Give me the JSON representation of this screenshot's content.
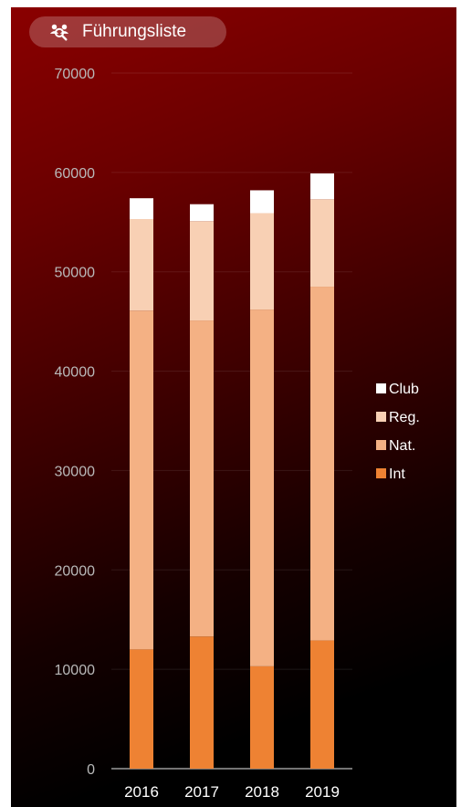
{
  "header": {
    "title": "Führungsliste",
    "icon": "users-search-icon"
  },
  "chart_data": {
    "type": "bar",
    "stacked": true,
    "categories": [
      "2016",
      "2017",
      "2018",
      "2019"
    ],
    "ylim": [
      0,
      70000
    ],
    "yticks": [
      0,
      10000,
      20000,
      30000,
      40000,
      50000,
      60000,
      70000
    ],
    "grid": true,
    "legend_position": "right",
    "series": [
      {
        "name": "Int",
        "color": "#ee8233",
        "values": [
          12000,
          13300,
          10300,
          12900
        ]
      },
      {
        "name": "Nat.",
        "color": "#f4b184",
        "values": [
          34100,
          31800,
          35900,
          35600
        ]
      },
      {
        "name": "Reg.",
        "color": "#f8d0b4",
        "values": [
          9200,
          10000,
          9700,
          8800
        ]
      },
      {
        "name": "Club",
        "color": "#ffffff",
        "values": [
          2100,
          1700,
          2300,
          2600
        ]
      }
    ],
    "legend_order": [
      "Club",
      "Reg.",
      "Nat.",
      "Int"
    ]
  }
}
